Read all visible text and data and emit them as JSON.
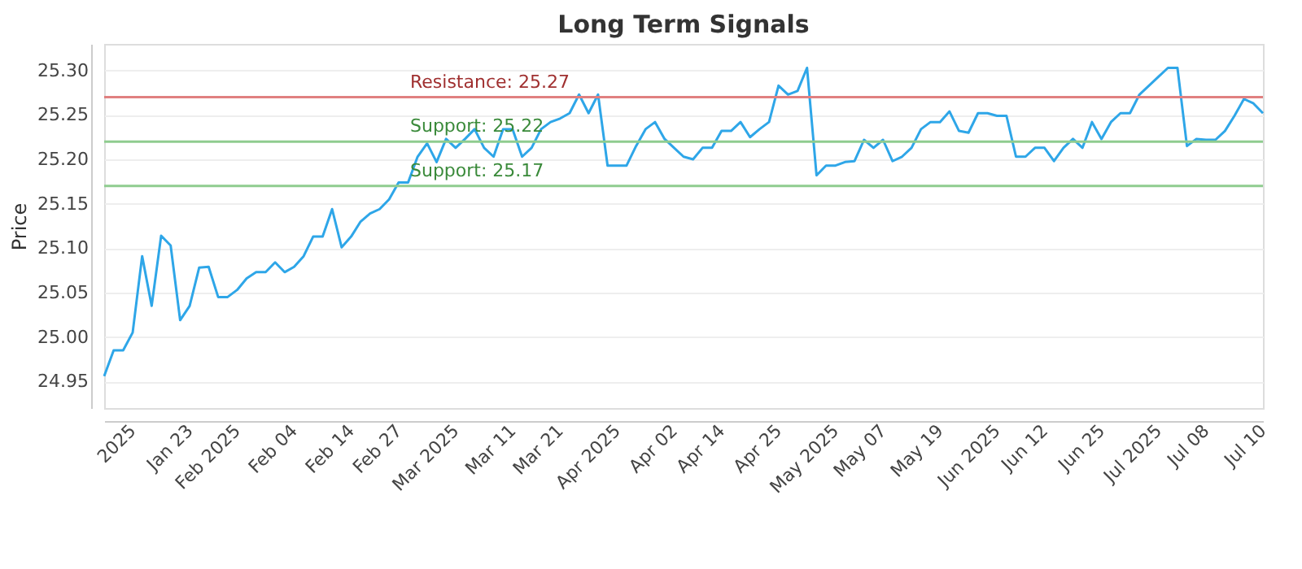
{
  "chart_data": {
    "type": "line",
    "title": "Long Term Signals",
    "ylabel": "Price",
    "categories": [
      null,
      null,
      null,
      "2025",
      null,
      null,
      null,
      null,
      null,
      "Jan 23",
      null,
      null,
      null,
      null,
      "Feb 2025",
      null,
      null,
      null,
      null,
      null,
      "Feb 04",
      null,
      null,
      null,
      null,
      null,
      "Feb 14",
      null,
      null,
      null,
      null,
      "Feb 27",
      null,
      null,
      null,
      null,
      null,
      "Mar 2025",
      null,
      null,
      null,
      null,
      null,
      "Mar 11",
      null,
      null,
      null,
      null,
      "Mar 21",
      null,
      null,
      null,
      null,
      null,
      "Apr 2025",
      null,
      null,
      null,
      null,
      null,
      "Apr 02",
      null,
      null,
      null,
      null,
      "Apr 14",
      null,
      null,
      null,
      null,
      null,
      "Apr 25",
      null,
      null,
      null,
      null,
      null,
      "May 2025",
      null,
      null,
      null,
      null,
      "May 07",
      null,
      null,
      null,
      null,
      null,
      "May 19",
      null,
      null,
      null,
      null,
      null,
      "Jun 2025",
      null,
      null,
      null,
      null,
      "Jun 12",
      null,
      null,
      null,
      null,
      null,
      "Jun 25",
      null,
      null,
      null,
      null,
      null,
      "Jul 2025",
      null,
      null,
      null,
      null,
      "Jul 08",
      null,
      null,
      null,
      null,
      null,
      "Jul 10"
    ],
    "series": [
      {
        "color": "#2ea6e8",
        "values": [
          24.956,
          24.985,
          24.985,
          25.005,
          25.091,
          25.035,
          25.114,
          25.103,
          25.019,
          25.035,
          25.078,
          25.079,
          25.045,
          25.045,
          25.053,
          25.066,
          25.073,
          25.073,
          25.084,
          25.073,
          25.079,
          25.091,
          25.113,
          25.113,
          25.144,
          25.101,
          25.113,
          25.13,
          25.139,
          25.144,
          25.155,
          25.174,
          25.174,
          25.203,
          25.218,
          25.197,
          25.223,
          25.213,
          25.223,
          25.234,
          25.213,
          25.203,
          25.234,
          25.234,
          25.203,
          25.213,
          25.234,
          25.242,
          25.246,
          25.252,
          25.273,
          25.252,
          25.273,
          25.193,
          25.193,
          25.193,
          25.215,
          25.234,
          25.242,
          25.223,
          25.213,
          25.203,
          25.2,
          25.213,
          25.213,
          25.232,
          25.232,
          25.242,
          25.225,
          25.234,
          25.242,
          25.283,
          25.273,
          25.277,
          25.303,
          25.182,
          25.193,
          25.193,
          25.197,
          25.198,
          25.222,
          25.213,
          25.222,
          25.198,
          25.203,
          25.213,
          25.234,
          25.242,
          25.242,
          25.254,
          25.232,
          25.23,
          25.252,
          25.252,
          25.249,
          25.249,
          25.203,
          25.203,
          25.213,
          25.213,
          25.198,
          25.213,
          25.223,
          25.213,
          25.242,
          25.223,
          25.242,
          25.252,
          25.252,
          25.273,
          25.283,
          25.293,
          25.303,
          25.303,
          25.215,
          25.223,
          25.222,
          25.222,
          25.232,
          25.249,
          25.268,
          25.263,
          25.252
        ]
      }
    ],
    "ylim": [
      24.92,
      25.33
    ],
    "yticks": [
      24.95,
      {
        "value": 25.0,
        "label": "25.00"
      },
      25.05,
      {
        "value": 25.1,
        "label": "25.10"
      },
      25.15,
      {
        "value": 25.2,
        "label": "25.20"
      },
      25.25,
      {
        "value": 25.3,
        "label": "25.30"
      }
    ],
    "grid": "y",
    "marker": "none",
    "line_style": "solid",
    "ref_lines": [
      {
        "axis": "y",
        "value": 25.27,
        "label": "Resistance: 25.27",
        "color": "#e08080"
      },
      {
        "axis": "y",
        "value": 25.22,
        "label": "Support: 25.22",
        "color": "#8fcc8f"
      },
      {
        "axis": "y",
        "value": 25.17,
        "label": "Support: 25.17",
        "color": "#8fcc8f"
      }
    ]
  }
}
